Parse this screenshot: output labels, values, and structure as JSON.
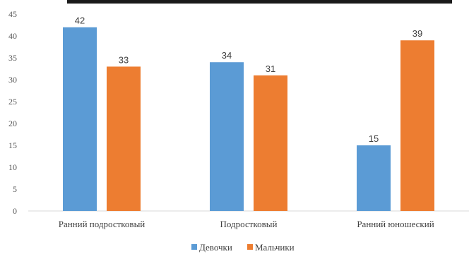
{
  "chart_data": {
    "type": "bar",
    "categories": [
      "Ранний подростковый",
      "Подростковый",
      "Ранний юношеский"
    ],
    "series": [
      {
        "name": "Девочки",
        "values": [
          42,
          34,
          15
        ],
        "color": "#5b9bd5"
      },
      {
        "name": "Мальчики",
        "values": [
          33,
          31,
          39
        ],
        "color": "#ed7d31"
      }
    ],
    "ylim": [
      0,
      45
    ],
    "yticks": [
      0,
      5,
      10,
      15,
      20,
      25,
      30,
      35,
      40,
      45
    ],
    "data_labels": true,
    "grid": false,
    "legend_position": "bottom"
  }
}
